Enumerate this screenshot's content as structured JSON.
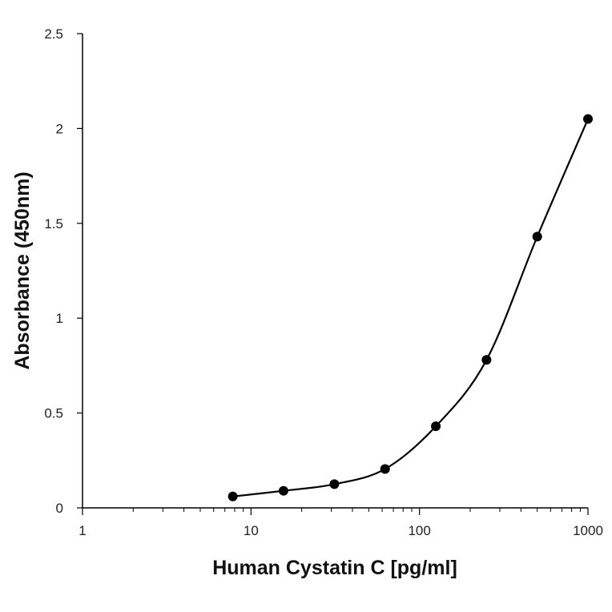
{
  "chart_data": {
    "type": "scatter",
    "title": "",
    "xlabel": "Human Cystatin C [pg/ml]",
    "ylabel": "Absorbance (450nm)",
    "x_scale": "log",
    "xlim": [
      1,
      1000
    ],
    "ylim": [
      0,
      2.5
    ],
    "x_ticks": [
      "1",
      "10",
      "100",
      "1000"
    ],
    "y_ticks": [
      "0",
      "0.5",
      "1",
      "1.5",
      "2",
      "2.5"
    ],
    "grid": false,
    "legend": "none",
    "series": [
      {
        "x": [
          7.8,
          15.6,
          31.25,
          62.5,
          125,
          250,
          500,
          1000
        ],
        "y": [
          0.06,
          0.09,
          0.125,
          0.205,
          0.43,
          0.78,
          1.43,
          2.05
        ],
        "line": "smooth",
        "color": "#000000"
      }
    ]
  }
}
